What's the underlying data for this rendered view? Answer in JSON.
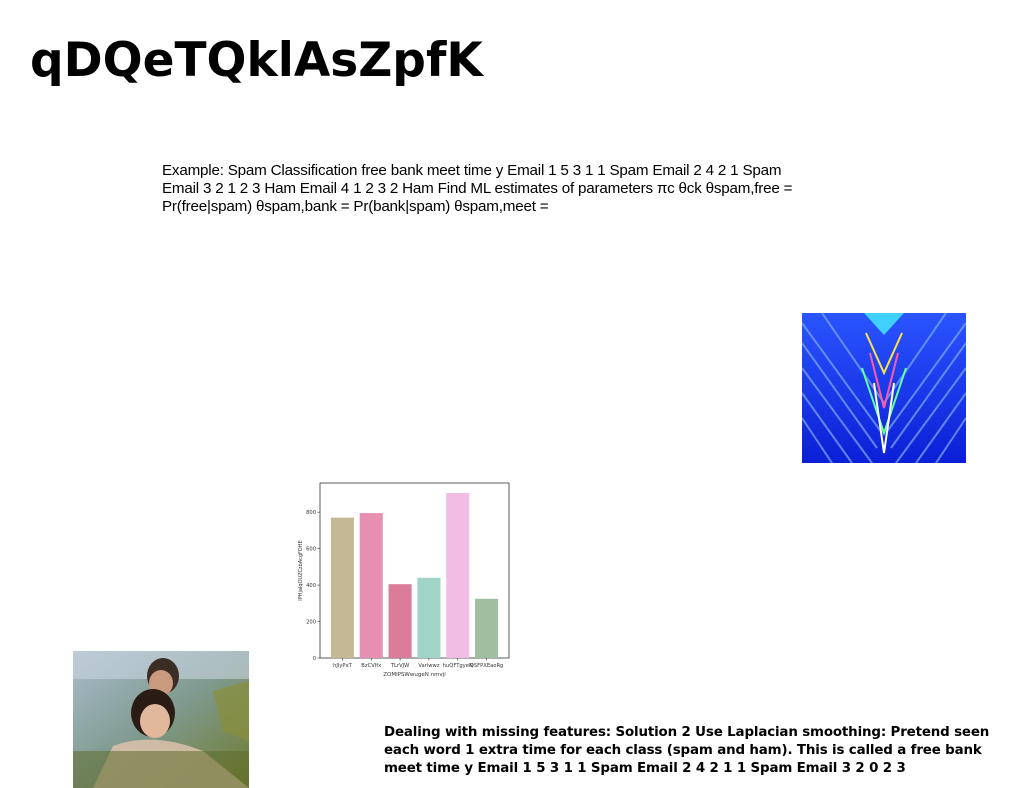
{
  "slide": {
    "title": "qDQeTQklAsZpfK",
    "body_text": "Example: Spam Classification free bank meet time y Email 1 5 3 1 1 Spam Email 2 4 2 1 Spam Email 3 2 1 2 3 Ham Email 4 1 2 3 2 Ham Find ML estimates of parameters πc θck θspam,free = Pr(free|spam) θspam,bank = Pr(bank|spam) θspam,meet =",
    "bottom_text": "Dealing with missing features: Solution 2 Use Laplacian smoothing: Pretend seen each word 1 extra time for each class (spam and ham). This is called a free bank meet time y Email 1 5 3 1 1 Spam Email 2 4 2 1 1 Spam Email 3 2 0 2 3"
  },
  "colors": {
    "fractal_primary": "#1f3bff",
    "bars": [
      "#c4b994",
      "#e68fb0",
      "#db7d9a",
      "#a0d4c6",
      "#f2bde4",
      "#9fc0a0"
    ]
  },
  "chart_data": {
    "type": "bar",
    "categories": [
      "hJlyPxT",
      "BzCVIfx",
      "TLrVJW",
      "Varlwwz",
      "huQFTgyeN",
      "QSFPXEaoRg"
    ],
    "values": [
      770,
      795,
      405,
      440,
      905,
      325
    ],
    "xlabel": "ZOMlPSWwugeN nmvji",
    "ylabel": "lPHjaIqOUZCzbAcgFDHE",
    "yticks": [
      0,
      200,
      400,
      600,
      800
    ],
    "ylim": [
      0,
      960
    ],
    "grid": false
  }
}
